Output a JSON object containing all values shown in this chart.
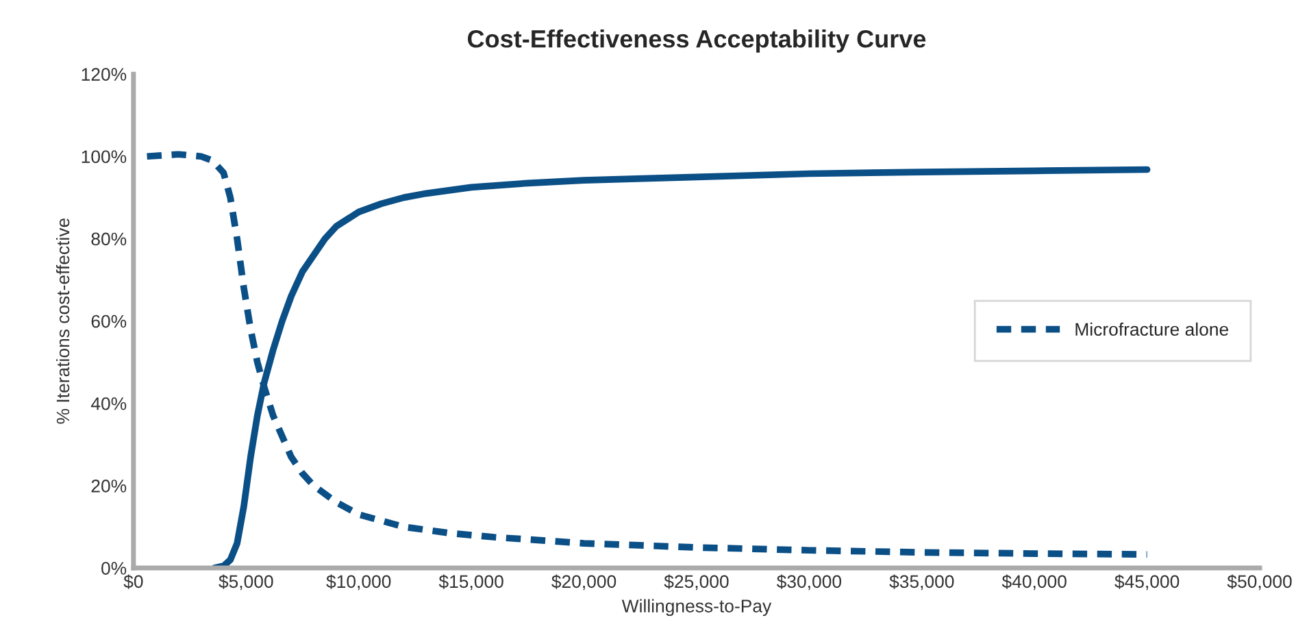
{
  "chart_data": {
    "type": "line",
    "title": "Cost-Effectiveness Acceptability Curve",
    "xlabel": "Willingness-to-Pay",
    "ylabel": "% Iterations cost-effective",
    "xlim": [
      0,
      50000
    ],
    "ylim": [
      0,
      120
    ],
    "xticks": [
      {
        "value": 0,
        "label": "$0"
      },
      {
        "value": 5000,
        "label": "$5,000"
      },
      {
        "value": 10000,
        "label": "$10,000"
      },
      {
        "value": 15000,
        "label": "$15,000"
      },
      {
        "value": 20000,
        "label": "$20,000"
      },
      {
        "value": 25000,
        "label": "$25,000"
      },
      {
        "value": 30000,
        "label": "$30,000"
      },
      {
        "value": 35000,
        "label": "$35,000"
      },
      {
        "value": 40000,
        "label": "$40,000"
      },
      {
        "value": 45000,
        "label": "$45,000"
      },
      {
        "value": 50000,
        "label": "$50,000"
      }
    ],
    "yticks": [
      {
        "value": 0,
        "label": "0%"
      },
      {
        "value": 20,
        "label": "20%"
      },
      {
        "value": 40,
        "label": "40%"
      },
      {
        "value": 60,
        "label": "60%"
      },
      {
        "value": 80,
        "label": "80%"
      },
      {
        "value": 100,
        "label": "100%"
      },
      {
        "value": 120,
        "label": "120%"
      }
    ],
    "grid": false,
    "legend": "right",
    "marker": "none",
    "series": [
      {
        "color": "#0b4f87",
        "line_style": "solid",
        "x": [
          3600,
          4000,
          4300,
          4600,
          4900,
          5200,
          5500,
          5800,
          6200,
          6600,
          7000,
          7500,
          8000,
          8500,
          9000,
          10000,
          11000,
          12000,
          13000,
          15000,
          17500,
          20000,
          25000,
          30000,
          35000,
          40000,
          45000
        ],
        "values": [
          0,
          0.5,
          2,
          6,
          15,
          27,
          37,
          45,
          53,
          60,
          66,
          72,
          76,
          80,
          83,
          86.5,
          88.5,
          90,
          91,
          92.5,
          93.5,
          94.2,
          95,
          95.8,
          96.2,
          96.5,
          96.8
        ]
      },
      {
        "name": "Microfracture alone",
        "color": "#0b4f87",
        "line_style": "dashed",
        "x": [
          600,
          2000,
          3000,
          3500,
          4000,
          4300,
          4600,
          4900,
          5200,
          5500,
          5800,
          6200,
          6600,
          7000,
          7500,
          8000,
          9000,
          10000,
          11000,
          12000,
          14000,
          16000,
          20000,
          25000,
          30000,
          35000,
          40000,
          45000
        ],
        "values": [
          100,
          100.5,
          100,
          99,
          96,
          90,
          80,
          68,
          58,
          50,
          44,
          37,
          32,
          27,
          23,
          20,
          16,
          13,
          11.5,
          10,
          8.5,
          7.5,
          6,
          5,
          4.3,
          3.8,
          3.5,
          3.3
        ]
      }
    ]
  }
}
